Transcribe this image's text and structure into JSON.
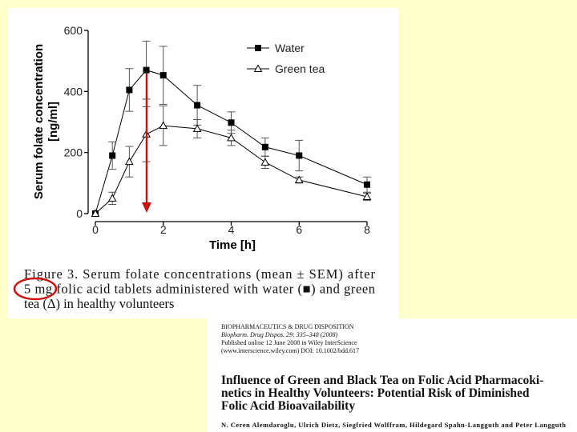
{
  "chart_data": {
    "type": "line",
    "ylabel": [
      "Serum folate concentration",
      "[ng/ml]"
    ],
    "xlabel": "Time [h]",
    "x": [
      0,
      0.5,
      1,
      1.5,
      2,
      3,
      4,
      5,
      6,
      8
    ],
    "series": [
      {
        "name": "Water",
        "color": "#000000",
        "marker": "square",
        "values": [
          0,
          190,
          405,
          470,
          453,
          355,
          298,
          218,
          190,
          95
        ],
        "errors": [
          0,
          45,
          70,
          95,
          95,
          65,
          35,
          30,
          50,
          25
        ]
      },
      {
        "name": "Green tea",
        "color": "#000000",
        "marker": "triangle",
        "values": [
          0,
          50,
          170,
          260,
          288,
          278,
          248,
          168,
          110,
          55
        ],
        "errors": [
          0,
          20,
          50,
          90,
          65,
          30,
          25,
          20,
          10,
          12
        ]
      }
    ],
    "xlim": [
      0,
      8
    ],
    "xticks": [
      0,
      2,
      4,
      6,
      8
    ],
    "ylim": [
      0,
      600
    ],
    "yticks": [
      0,
      200,
      400,
      600
    ],
    "grid": false,
    "legend": "top-right"
  },
  "caption": [
    "Figure 3. Serum folate concentrations (mean ± SEM) after",
    "5 mg folic acid tablets administered with water (■) and green",
    "tea (Δ) in healthy volunteers"
  ],
  "paper": {
    "header": [
      "BIOPHARMACEUTICS & DRUG DISPOSITION",
      "Biopharm. Drug Dispos. 29: 335–348 (2008)",
      "Published online 12 June 2008 in Wiley InterScience",
      "(www.interscience.wiley.com) DOI: 10.1002/bdd.617"
    ],
    "title": [
      "Influence of Green and Black Tea on Folic Acid Pharmacoki-",
      "netics in Healthy Volunteers: Potential Risk of Diminished",
      "Folic Acid Bioavailability"
    ],
    "authors": "N. Ceren Alemdaroglu, Ulrich Dietz, Siegfried Wolffram, Hildegard Spahn-Langguth and Peter Langguth"
  }
}
